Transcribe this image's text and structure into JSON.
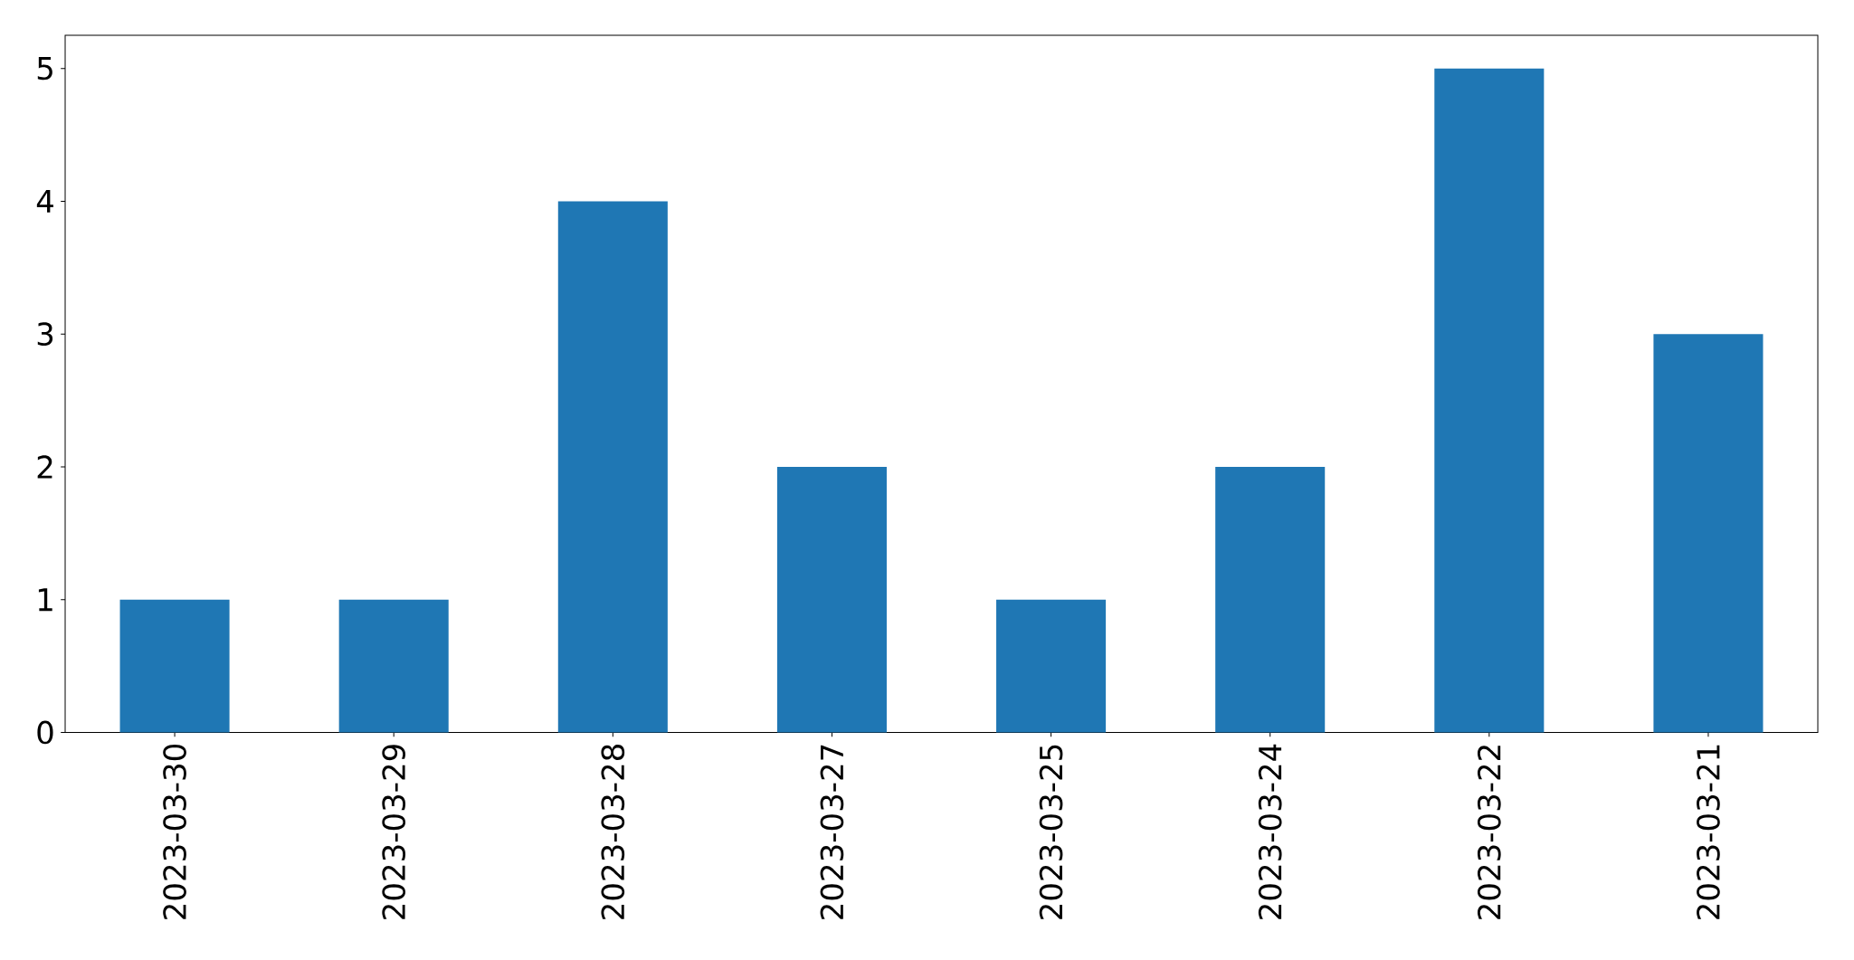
{
  "chart_data": {
    "type": "bar",
    "categories": [
      "2023-03-30",
      "2023-03-29",
      "2023-03-28",
      "2023-03-27",
      "2023-03-25",
      "2023-03-24",
      "2023-03-22",
      "2023-03-21"
    ],
    "values": [
      1,
      1,
      4,
      2,
      1,
      2,
      5,
      3
    ],
    "color": "#1f77b4",
    "ylim": [
      0,
      5.25
    ],
    "yticks": [
      0,
      1,
      2,
      3,
      4,
      5
    ]
  }
}
